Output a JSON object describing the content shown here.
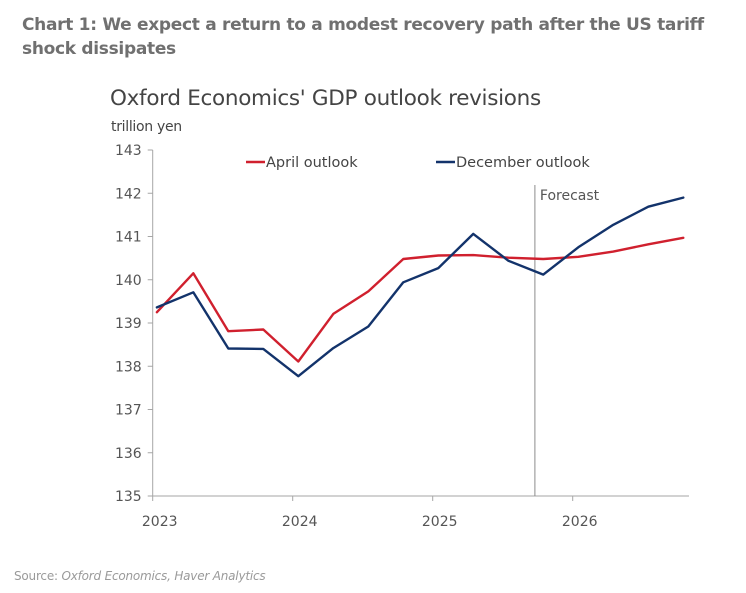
{
  "headline": "Chart 1: We expect a return to a modest recovery path after the US tariff shock dissipates",
  "source": {
    "prefix": "Source: ",
    "text": "Oxford Economics, Haver Analytics"
  },
  "colors": {
    "april": "#d0202e",
    "december": "#13336b",
    "axis": "#a6a6a6",
    "tick_text": "#555555"
  },
  "chart_data": {
    "type": "line",
    "title": "Oxford Economics' GDP outlook revisions",
    "ylabel": "trillion yen",
    "xlabel": "",
    "ylim": [
      135,
      143
    ],
    "yticks": [
      135,
      136,
      137,
      138,
      139,
      140,
      141,
      142,
      143
    ],
    "xlim": [
      2023,
      2026.83
    ],
    "xticks": [
      2023,
      2024,
      2025,
      2026
    ],
    "xtick_labels": [
      "2023",
      "2024",
      "2025",
      "2026"
    ],
    "grid": false,
    "legend": "top-center",
    "x": [
      2023.03,
      2023.29,
      2023.54,
      2023.79,
      2024.04,
      2024.29,
      2024.54,
      2024.79,
      2025.04,
      2025.29,
      2025.54,
      2025.79,
      2026.04,
      2026.29,
      2026.54,
      2026.79
    ],
    "series": [
      {
        "name": "April outlook",
        "color_key": "april",
        "values": [
          139.25,
          140.15,
          138.81,
          138.85,
          138.11,
          139.21,
          139.73,
          140.48,
          140.56,
          140.57,
          140.51,
          140.48,
          140.53,
          140.65,
          140.82,
          140.97
        ]
      },
      {
        "name": "December outlook",
        "color_key": "december",
        "values": [
          139.36,
          139.71,
          138.41,
          138.4,
          137.77,
          138.42,
          138.92,
          139.94,
          140.27,
          141.06,
          140.44,
          140.12,
          140.75,
          141.27,
          141.69,
          141.9
        ]
      }
    ],
    "annotations": [
      {
        "type": "vline",
        "x": 2025.73,
        "label": "Forecast"
      }
    ]
  }
}
